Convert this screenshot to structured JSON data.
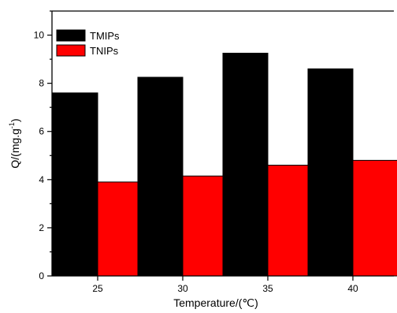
{
  "chart_data": {
    "type": "bar",
    "categories": [
      "25",
      "30",
      "35",
      "40"
    ],
    "series": [
      {
        "name": "TMIPs",
        "values": [
          7.6,
          8.25,
          9.25,
          8.6
        ],
        "color": "#000000"
      },
      {
        "name": "TNIPs",
        "values": [
          3.9,
          4.15,
          4.6,
          4.8
        ],
        "color": "#ff0000"
      }
    ],
    "title": "",
    "xlabel": "Temperature/(℃)",
    "ylabel": "Q/(mg.g",
    "ylabel_superscript": "-1",
    "ylabel_suffix": ")",
    "ylim": [
      0,
      11
    ],
    "yticks": [
      0,
      2,
      4,
      6,
      8,
      10
    ],
    "grid": false,
    "legend_position": "top-left"
  }
}
